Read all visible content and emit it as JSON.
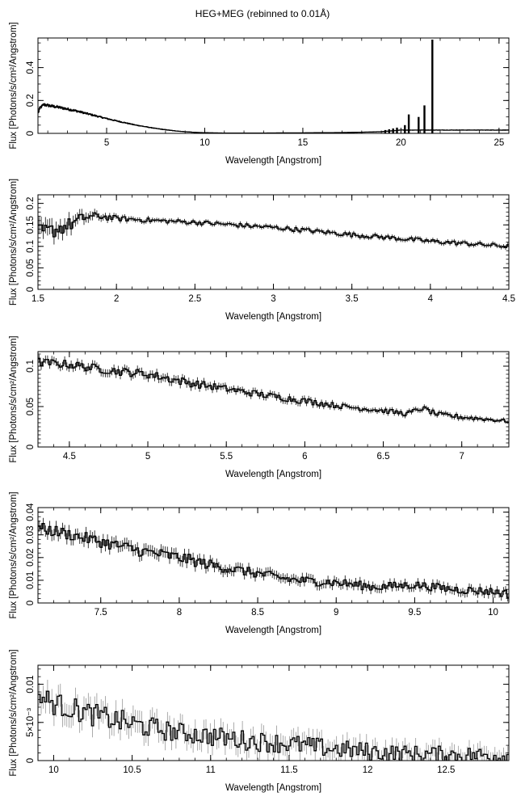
{
  "title": "HEG+MEG (rebinned to 0.01Å)",
  "chart_data": [
    {
      "type": "line",
      "xlabel": "Wavelength [Angstrom]",
      "ylabel": "Flux [Photons/s/cm²/Angstrom]",
      "xlim": [
        1.5,
        25.5
      ],
      "ylim": [
        0,
        0.58
      ],
      "xticks": [
        5,
        10,
        15,
        20,
        25
      ],
      "xtick_labels": [
        "5",
        "10",
        "15",
        "20",
        "25"
      ],
      "yticks": [
        0,
        0.2,
        0.4
      ],
      "ytick_labels": [
        "0",
        "0.2",
        "0.4"
      ],
      "series": [
        {
          "x": [
            1.5,
            1.6,
            1.8,
            2.0,
            2.5,
            3.0,
            3.5,
            4.0,
            4.5,
            5.0,
            5.5,
            6.0,
            6.5,
            7.0,
            7.5,
            8.0,
            8.5,
            9.0,
            9.5,
            10.0,
            11.0,
            12.0,
            13.0,
            14.0,
            15.0,
            16.0,
            17.0,
            18.0,
            19.0,
            19.5,
            20.0
          ],
          "y": [
            0.12,
            0.155,
            0.175,
            0.17,
            0.16,
            0.148,
            0.135,
            0.12,
            0.105,
            0.09,
            0.076,
            0.063,
            0.05,
            0.04,
            0.03,
            0.022,
            0.015,
            0.01,
            0.006,
            0.004,
            0.002,
            0.002,
            0.002,
            0.003,
            0.003,
            0.004,
            0.005,
            0.007,
            0.01,
            0.015,
            0.02
          ]
        }
      ],
      "lines": [
        {
          "x": 19.2,
          "y": 0.02
        },
        {
          "x": 19.4,
          "y": 0.025
        },
        {
          "x": 19.6,
          "y": 0.03
        },
        {
          "x": 19.8,
          "y": 0.035
        },
        {
          "x": 20.2,
          "y": 0.05
        },
        {
          "x": 20.4,
          "y": 0.115
        },
        {
          "x": 20.9,
          "y": 0.1
        },
        {
          "x": 21.2,
          "y": 0.17
        },
        {
          "x": 21.6,
          "y": 0.57
        }
      ]
    },
    {
      "type": "line",
      "xlabel": "Wavelength [Angstrom]",
      "ylabel": "Flux [Photons/s/cm²/Angstrom]",
      "xlim": [
        1.5,
        4.5
      ],
      "ylim": [
        0,
        0.22
      ],
      "xticks": [
        1.5,
        2,
        2.5,
        3,
        3.5,
        4,
        4.5
      ],
      "xtick_labels": [
        "1.5",
        "2",
        "2.5",
        "3",
        "3.5",
        "4",
        "4.5"
      ],
      "yticks": [
        0,
        0.05,
        0.1,
        0.15,
        0.2
      ],
      "ytick_labels": [
        "0",
        "0.05",
        "0.1",
        "0.15",
        "0.2"
      ],
      "series": [
        {
          "x": [
            1.5,
            1.6,
            1.7,
            1.8,
            1.9,
            2.0,
            2.25,
            2.5,
            2.75,
            3.0,
            3.25,
            3.5,
            3.75,
            4.0,
            4.25,
            4.5
          ],
          "y": [
            0.13,
            0.138,
            0.15,
            0.168,
            0.17,
            0.165,
            0.16,
            0.156,
            0.15,
            0.144,
            0.136,
            0.127,
            0.12,
            0.112,
            0.106,
            0.1
          ],
          "err": [
            0.02,
            0.018,
            0.016,
            0.012,
            0.008,
            0.006,
            0.005,
            0.005,
            0.005,
            0.005,
            0.005,
            0.005,
            0.005,
            0.005,
            0.005,
            0.005
          ]
        }
      ]
    },
    {
      "type": "line",
      "xlabel": "Wavelength [Angstrom]",
      "ylabel": "Flux [Photons/s/cm²/Angstrom]",
      "xlim": [
        4.3,
        7.3
      ],
      "ylim": [
        0,
        0.118
      ],
      "xticks": [
        4.5,
        5,
        5.5,
        6,
        6.5,
        7
      ],
      "xtick_labels": [
        "4.5",
        "5",
        "5.5",
        "6",
        "6.5",
        "7"
      ],
      "yticks": [
        0,
        0.05,
        0.1
      ],
      "ytick_labels": [
        "0",
        "0.05",
        "0.1"
      ],
      "series": [
        {
          "x": [
            4.3,
            4.5,
            4.75,
            5.0,
            5.25,
            5.5,
            5.75,
            6.0,
            6.25,
            6.5,
            6.65,
            6.75,
            6.85,
            7.0,
            7.3
          ],
          "y": [
            0.105,
            0.102,
            0.095,
            0.09,
            0.08,
            0.072,
            0.064,
            0.057,
            0.05,
            0.045,
            0.041,
            0.048,
            0.04,
            0.037,
            0.032
          ],
          "err": [
            0.005,
            0.005,
            0.005,
            0.005,
            0.005,
            0.004,
            0.004,
            0.004,
            0.003,
            0.003,
            0.003,
            0.003,
            0.003,
            0.003,
            0.002
          ]
        }
      ]
    },
    {
      "type": "line",
      "xlabel": "Wavelength [Angstrom]",
      "ylabel": "Flux [Photons/s/cm²/Angstrom]",
      "xlim": [
        7.1,
        10.1
      ],
      "ylim": [
        0,
        0.042
      ],
      "xticks": [
        7.5,
        8,
        8.5,
        9,
        9.5,
        10
      ],
      "xtick_labels": [
        "7.5",
        "8",
        "8.5",
        "9",
        "9.5",
        "10"
      ],
      "yticks": [
        0,
        0.01,
        0.02,
        0.03,
        0.04
      ],
      "ytick_labels": [
        "0",
        "0.01",
        "0.02",
        "0.03",
        "0.04"
      ],
      "series": [
        {
          "x": [
            7.1,
            7.25,
            7.5,
            7.75,
            8.0,
            8.25,
            8.5,
            8.65,
            8.75,
            9.0,
            9.25,
            9.5,
            9.75,
            10.0,
            10.1
          ],
          "y": [
            0.033,
            0.031,
            0.027,
            0.023,
            0.02,
            0.016,
            0.013,
            0.011,
            0.01,
            0.009,
            0.007,
            0.008,
            0.006,
            0.005,
            0.004
          ],
          "err": [
            0.0025,
            0.0025,
            0.0025,
            0.0025,
            0.0025,
            0.0022,
            0.002,
            0.002,
            0.002,
            0.002,
            0.0018,
            0.0018,
            0.0018,
            0.0018,
            0.0018
          ]
        }
      ]
    },
    {
      "type": "line",
      "xlabel": "Wavelength [Angstrom]",
      "ylabel": "Flux [Photons/s/cm²/Angstrom]",
      "xlim": [
        9.9,
        12.9
      ],
      "ylim": [
        0,
        0.0125
      ],
      "xticks": [
        10,
        10.5,
        11,
        11.5,
        12,
        12.5
      ],
      "xtick_labels": [
        "10",
        "10.5",
        "11",
        "11.5",
        "12",
        "12.5"
      ],
      "yticks": [
        0,
        0.005,
        0.01
      ],
      "ytick_labels": [
        "0",
        "5×10⁻³",
        "0.01"
      ],
      "series": [
        {
          "x": [
            9.9,
            10.0,
            10.25,
            10.5,
            10.75,
            11.0,
            11.25,
            11.5,
            11.75,
            12.0,
            12.25,
            12.5,
            12.75,
            12.9
          ],
          "y": [
            0.0085,
            0.0075,
            0.006,
            0.0048,
            0.0038,
            0.0032,
            0.0026,
            0.0022,
            0.0016,
            0.0012,
            0.0009,
            0.0008,
            0.0007,
            0.0006
          ],
          "err": [
            0.0015,
            0.0015,
            0.0015,
            0.0015,
            0.0013,
            0.0013,
            0.0013,
            0.0013,
            0.0012,
            0.0012,
            0.0011,
            0.0011,
            0.0011,
            0.0011
          ]
        }
      ]
    }
  ]
}
